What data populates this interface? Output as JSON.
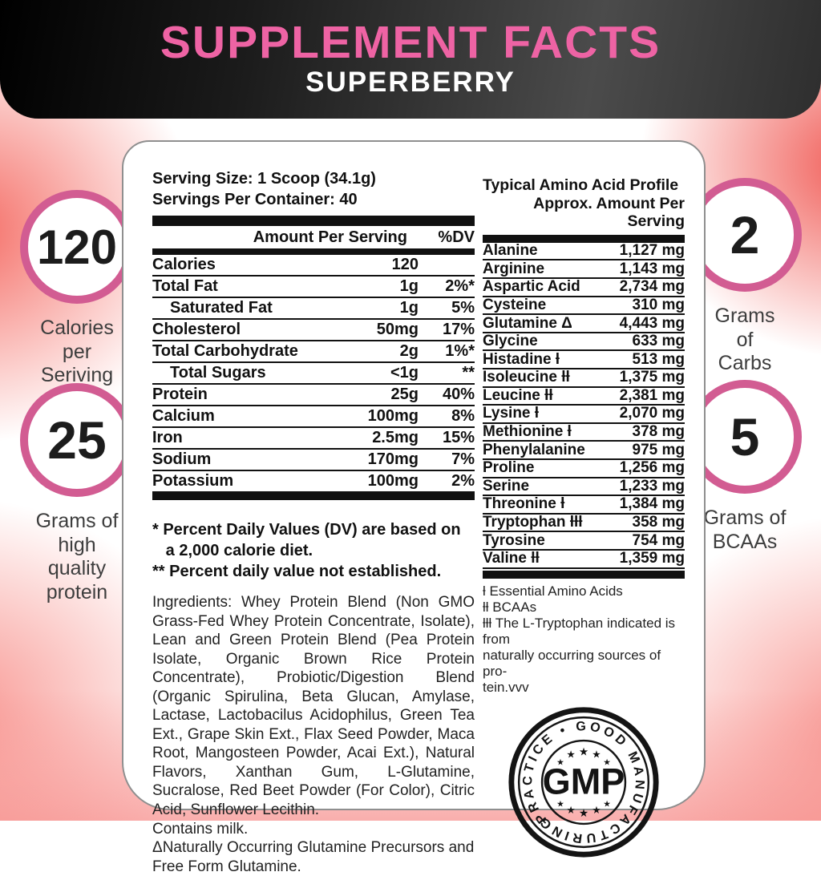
{
  "header": {
    "title": "SUPPLEMENT FACTS",
    "subtitle": "SUPERBERRY"
  },
  "badges": [
    {
      "value": "120",
      "label": "Calories\nper\nSeriving"
    },
    {
      "value": "25",
      "label": "Grams of\nhigh\nquality\nprotein"
    },
    {
      "value": "2",
      "label": "Grams\nof\nCarbs"
    },
    {
      "value": "5",
      "label": "Grams of\nBCAAs"
    }
  ],
  "panel": {
    "serving_size": "Serving Size: 1 Scoop (34.1g)",
    "servings_per_container": "Servings Per Container: 40",
    "nutrition": {
      "col_amount": "Amount Per Serving",
      "col_dv": "%DV",
      "rows": [
        {
          "name": "Calories",
          "amount": "120",
          "dv": ""
        },
        {
          "name": "Total Fat",
          "amount": "1g",
          "dv": "2%*"
        },
        {
          "name": "Saturated Fat",
          "amount": "1g",
          "dv": "5%",
          "indent": true
        },
        {
          "name": "Cholesterol",
          "amount": "50mg",
          "dv": "17%"
        },
        {
          "name": "Total Carbohydrate",
          "amount": "2g",
          "dv": "1%*"
        },
        {
          "name": "Total Sugars",
          "amount": "<1g",
          "dv": "**",
          "indent": true
        },
        {
          "name": "Protein",
          "amount": "25g",
          "dv": "40%"
        },
        {
          "name": "Calcium",
          "amount": "100mg",
          "dv": "8%"
        },
        {
          "name": "Iron",
          "amount": "2.5mg",
          "dv": "15%"
        },
        {
          "name": "Sodium",
          "amount": "170mg",
          "dv": "7%"
        },
        {
          "name": "Potassium",
          "amount": "100mg",
          "dv": "2%"
        }
      ],
      "footnote1": "* Percent Daily Values (DV) are based on\n   a 2,000 calorie diet.",
      "footnote2": "** Percent daily value not established."
    },
    "ingredients": "Ingredients: Whey Protein Blend (Non GMO Grass-Fed Whey Protein Concentrate, Isolate), Lean and Green Protein Blend (Pea Protein Isolate, Organic Brown Rice Protein Concentrate), Probiotic/Digestion Blend (Organic Spirulina, Beta Glucan, Amylase, Lactase, Lactobacilus Acidophilus, Green Tea Ext., Grape Skin Ext., Flax Seed Powder, Maca Root, Mangosteen Powder, Acai Ext.), Natural Flavors, Xanthan Gum, L-Glutamine, Sucralose, Red Beet Powder (For Color), Citric Acid, Sunflower Lecithin.",
    "contains": "Contains milk.",
    "glutamine_note": "ΔNaturally Occurring Glutamine Precursors and Free Form Glutamine.",
    "amino": {
      "title": "Typical Amino Acid Profile",
      "subtitle": "Approx. Amount Per Serving",
      "rows": [
        {
          "name": "Alanine",
          "amount": "1,127 mg"
        },
        {
          "name": "Arginine",
          "amount": "1,143 mg"
        },
        {
          "name": "Aspartic Acid",
          "amount": "2,734 mg"
        },
        {
          "name": "Cysteine",
          "amount": "310 mg"
        },
        {
          "name": "Glutamine Δ",
          "amount": "4,443 mg"
        },
        {
          "name": "Glycine",
          "amount": "633 mg"
        },
        {
          "name": "Histadine ƚ",
          "amount": "513 mg"
        },
        {
          "name": "Isoleucine ƚƚ",
          "amount": "1,375 mg"
        },
        {
          "name": "Leucine ƚƚ",
          "amount": "2,381 mg"
        },
        {
          "name": "Lysine ƚ",
          "amount": "2,070 mg"
        },
        {
          "name": "Methionine ƚ",
          "amount": "378 mg"
        },
        {
          "name": "Phenylalanine",
          "amount": "975 mg"
        },
        {
          "name": "Proline",
          "amount": "1,256 mg"
        },
        {
          "name": "Serine",
          "amount": "1,233 mg"
        },
        {
          "name": "Threonine ƚ",
          "amount": "1,384 mg"
        },
        {
          "name": "Tryptophan ƚƚƚ",
          "amount": "358 mg"
        },
        {
          "name": "Tyrosine",
          "amount": "754 mg"
        },
        {
          "name": "Valine ƚƚ",
          "amount": "1,359 mg"
        }
      ],
      "footnotes": [
        "ƚ Essential Amino Acids",
        "ƚƚ BCAAs",
        "ƚƚƚ The L-Tryptophan indicated is from\nnaturally occurring sources of pro-\ntein.vvv"
      ]
    },
    "gmp": {
      "ring_text": "PRACTICE • GOOD MANUFACTURING",
      "center": "GMP"
    }
  },
  "colors": {
    "title_pink": "#ee63a4",
    "ring_pink": "#d25c92",
    "salmon": "#f4645c",
    "ink": "#111111"
  }
}
